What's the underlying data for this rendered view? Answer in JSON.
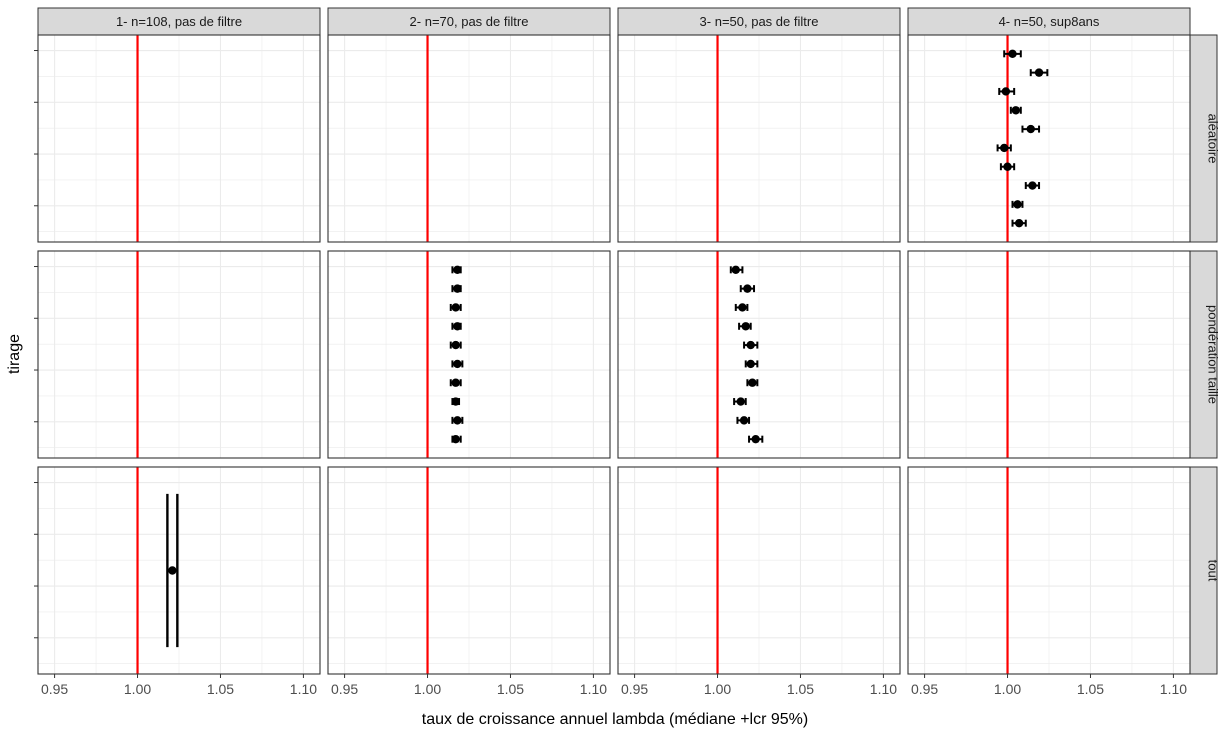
{
  "chart_data": {
    "type": "scatter",
    "subtype": "faceted point-range (median with 95% interval)",
    "xlabel": "taux de croissance annuel lambda (médiane +lcr 95%)",
    "ylabel": "tirage",
    "xlim": [
      0.94,
      1.11
    ],
    "x_ticks": [
      0.95,
      1.0,
      1.05,
      1.1
    ],
    "x_tick_labels": [
      "0.95",
      "1.00",
      "1.05",
      "1.10"
    ],
    "reference_line": {
      "x": 1.0,
      "color": "#ff0000"
    },
    "grid": true,
    "theme": "bw",
    "columns": [
      "1- n=108, pas de filtre",
      "2- n=70, pas de filtre",
      "3- n=50, pas de filtre",
      "4- n=50, sup8ans"
    ],
    "rows": [
      "aléatoire",
      "pondération taille",
      "tout"
    ],
    "colors": {
      "strip_bg": "#d9d9d9",
      "panel_border": "#333333",
      "grid": "#ebebeb",
      "point": "#000000",
      "reference": "#ff0000"
    },
    "panels": [
      {
        "row": 0,
        "col": 3,
        "points": [
          {
            "median": 1.007,
            "lcl": 1.003,
            "ucl": 1.011
          },
          {
            "median": 1.006,
            "lcl": 1.003,
            "ucl": 1.009
          },
          {
            "median": 1.015,
            "lcl": 1.011,
            "ucl": 1.019
          },
          {
            "median": 1.0,
            "lcl": 0.996,
            "ucl": 1.004
          },
          {
            "median": 0.998,
            "lcl": 0.994,
            "ucl": 1.002
          },
          {
            "median": 1.014,
            "lcl": 1.009,
            "ucl": 1.019
          },
          {
            "median": 1.005,
            "lcl": 1.002,
            "ucl": 1.008
          },
          {
            "median": 0.999,
            "lcl": 0.995,
            "ucl": 1.004
          },
          {
            "median": 1.019,
            "lcl": 1.014,
            "ucl": 1.024
          },
          {
            "median": 1.003,
            "lcl": 0.998,
            "ucl": 1.008
          }
        ]
      },
      {
        "row": 1,
        "col": 1,
        "points": [
          {
            "median": 1.017,
            "lcl": 1.015,
            "ucl": 1.02
          },
          {
            "median": 1.018,
            "lcl": 1.015,
            "ucl": 1.021
          },
          {
            "median": 1.017,
            "lcl": 1.015,
            "ucl": 1.019
          },
          {
            "median": 1.017,
            "lcl": 1.014,
            "ucl": 1.02
          },
          {
            "median": 1.018,
            "lcl": 1.015,
            "ucl": 1.021
          },
          {
            "median": 1.017,
            "lcl": 1.014,
            "ucl": 1.02
          },
          {
            "median": 1.018,
            "lcl": 1.015,
            "ucl": 1.02
          },
          {
            "median": 1.017,
            "lcl": 1.014,
            "ucl": 1.02
          },
          {
            "median": 1.018,
            "lcl": 1.015,
            "ucl": 1.02
          },
          {
            "median": 1.018,
            "lcl": 1.015,
            "ucl": 1.02
          }
        ]
      },
      {
        "row": 1,
        "col": 2,
        "points": [
          {
            "median": 1.023,
            "lcl": 1.019,
            "ucl": 1.027
          },
          {
            "median": 1.016,
            "lcl": 1.012,
            "ucl": 1.019
          },
          {
            "median": 1.014,
            "lcl": 1.01,
            "ucl": 1.017
          },
          {
            "median": 1.021,
            "lcl": 1.018,
            "ucl": 1.024
          },
          {
            "median": 1.02,
            "lcl": 1.017,
            "ucl": 1.024
          },
          {
            "median": 1.02,
            "lcl": 1.016,
            "ucl": 1.024
          },
          {
            "median": 1.017,
            "lcl": 1.013,
            "ucl": 1.02
          },
          {
            "median": 1.015,
            "lcl": 1.011,
            "ucl": 1.018
          },
          {
            "median": 1.018,
            "lcl": 1.014,
            "ucl": 1.022
          },
          {
            "median": 1.011,
            "lcl": 1.008,
            "ucl": 1.015
          }
        ]
      },
      {
        "row": 2,
        "col": 0,
        "points": [
          {
            "median": 1.021,
            "lcl": 1.018,
            "ucl": 1.024
          }
        ]
      }
    ]
  }
}
